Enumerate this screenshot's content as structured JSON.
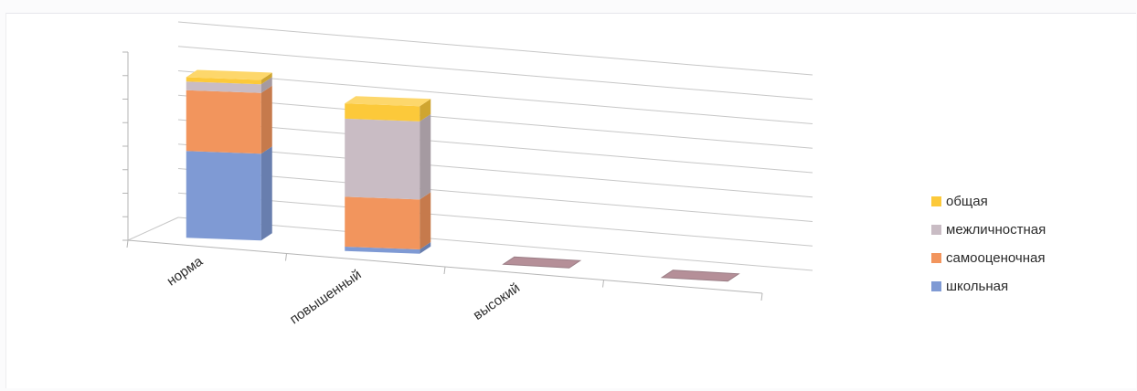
{
  "chart_data": {
    "type": "bar",
    "stacked": true,
    "three_d": true,
    "categories": [
      "норма",
      "повышенный",
      "высокий",
      ""
    ],
    "series": [
      {
        "name": "школьная",
        "color": "#7f9ad4",
        "values": [
          4,
          0.2,
          0,
          0
        ]
      },
      {
        "name": "самооценочная",
        "color": "#f2955d",
        "values": [
          2.8,
          2.3,
          0,
          0
        ]
      },
      {
        "name": "межличностная",
        "color": "#c9bcc4",
        "values": [
          0.4,
          3.6,
          0,
          0
        ]
      },
      {
        "name": "общая",
        "color": "#fcc93a",
        "values": [
          0.2,
          0.7,
          0,
          0
        ]
      }
    ],
    "ylim": [
      0,
      8
    ],
    "grid": true,
    "legend_position": "right",
    "title": "",
    "xlabel": "",
    "ylabel": ""
  },
  "legend_order": [
    "общая",
    "межличностная",
    "самооценочная",
    "школьная"
  ]
}
